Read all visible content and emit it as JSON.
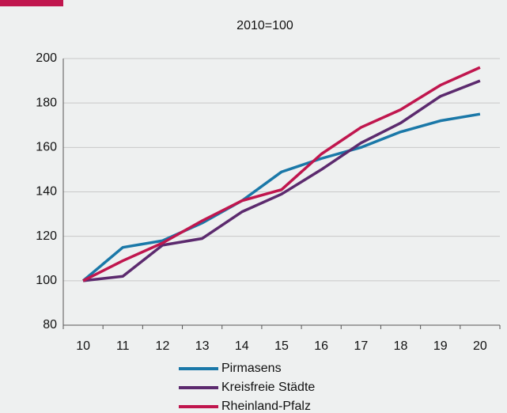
{
  "chart_data": {
    "type": "line",
    "title": "2010=100",
    "categories": [
      "10",
      "11",
      "12",
      "13",
      "14",
      "15",
      "16",
      "17",
      "18",
      "19",
      "20"
    ],
    "series": [
      {
        "name": "Pirmasens",
        "color": "#1a78a8",
        "values": [
          100,
          115,
          118,
          126,
          136,
          149,
          155,
          160,
          167,
          172,
          175
        ]
      },
      {
        "name": "Kreisfreie Städte",
        "color": "#5c2a6e",
        "values": [
          100,
          102,
          116,
          119,
          131,
          139,
          150,
          162,
          171,
          183,
          190
        ]
      },
      {
        "name": "Rheinland-Pfalz",
        "color": "#c0164e",
        "values": [
          100,
          109,
          117,
          127,
          136,
          141,
          157,
          169,
          177,
          188,
          196
        ]
      }
    ],
    "ylim": [
      80,
      200
    ],
    "yticks": [
      80,
      100,
      120,
      140,
      160,
      180,
      200
    ],
    "grid": true,
    "legend": "bottom"
  }
}
